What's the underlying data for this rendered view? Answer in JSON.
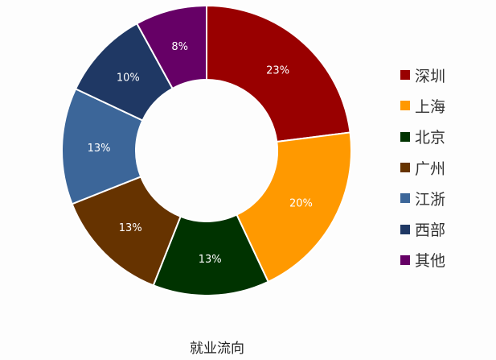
{
  "chart_data": {
    "type": "pie",
    "donut": true,
    "title": "就业流向",
    "categories": [
      "深圳",
      "上海",
      "北京",
      "广州",
      "江浙",
      "西部",
      "其他"
    ],
    "values": [
      23,
      20,
      13,
      13,
      13,
      10,
      8
    ],
    "labels": [
      "23%",
      "20%",
      "13%",
      "13%",
      "13%",
      "10%",
      "8%"
    ],
    "colors": [
      "#990000",
      "#FF9900",
      "#003300",
      "#663300",
      "#3C6699",
      "#1F3864",
      "#660066"
    ],
    "legend": "right"
  }
}
